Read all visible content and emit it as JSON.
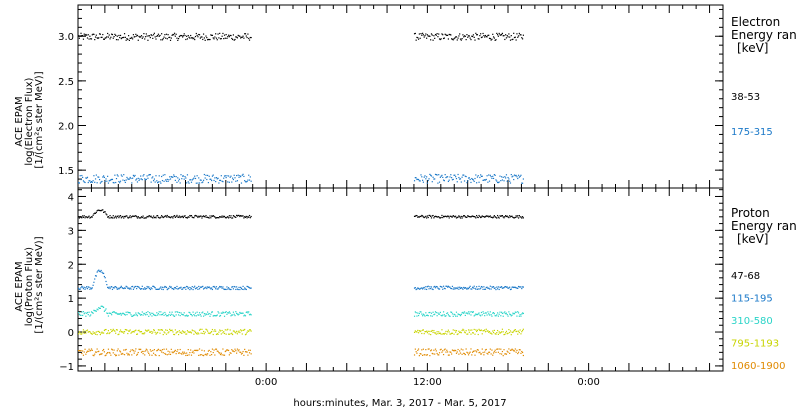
{
  "chart_data": [
    {
      "type": "scatter",
      "panel": "electron",
      "ylabel": [
        "ACE EPAM",
        "log(Electron Flux)",
        "[1/(cm²s ster MeV)]"
      ],
      "ylim": [
        1.3,
        3.35
      ],
      "yticks": [
        1.5,
        2.0,
        2.5,
        3.0
      ],
      "ytick_labels": [
        "1.5",
        "2.0",
        "2.5",
        "3.0"
      ],
      "legend_title": [
        "Electron",
        "Energy ran",
        "[keV]"
      ],
      "series": [
        {
          "name": "38-53",
          "color": "#000000",
          "level": 3.0,
          "noise": 0.04
        },
        {
          "name": "175-315",
          "color": "#1a78c8",
          "level": 1.41,
          "noise": 0.05
        }
      ]
    },
    {
      "type": "scatter",
      "panel": "proton",
      "ylabel": [
        "ACE EPAM",
        "log(Proton Flux)",
        "[1/(cm²s ster MeV)]"
      ],
      "ylim": [
        -1.15,
        4.25
      ],
      "yticks": [
        -1,
        0,
        1,
        2,
        3,
        4
      ],
      "ytick_labels": [
        "−1",
        "0",
        "1",
        "2",
        "3",
        "4"
      ],
      "legend_title": [
        "Proton",
        "Energy ran",
        "[keV]"
      ],
      "series": [
        {
          "name": "47-68",
          "color": "#000000",
          "level": 3.42,
          "noise": 0.04
        },
        {
          "name": "115-195",
          "color": "#1a78c8",
          "level": 1.32,
          "noise": 0.05
        },
        {
          "name": "310-580",
          "color": "#2ad4c8",
          "level": 0.55,
          "noise": 0.07
        },
        {
          "name": "795-1193",
          "color": "#c8d400",
          "level": 0.02,
          "noise": 0.08
        },
        {
          "name": "1060-1900",
          "color": "#e08a00",
          "level": -0.58,
          "noise": 0.1
        }
      ]
    }
  ],
  "x_axis": {
    "xlabel": "hours:minutes, Mar.  3, 2017 - Mar.  5, 2017",
    "range_hours": [
      0,
      48
    ],
    "tick_labels": [
      {
        "hour": 14,
        "label": "0:00"
      },
      {
        "hour": 26,
        "label": "12:00"
      },
      {
        "hour": 38,
        "label": "0:00"
      }
    ],
    "data_segments_hours": [
      [
        0,
        12.9
      ],
      [
        25.0,
        33.1
      ]
    ]
  }
}
